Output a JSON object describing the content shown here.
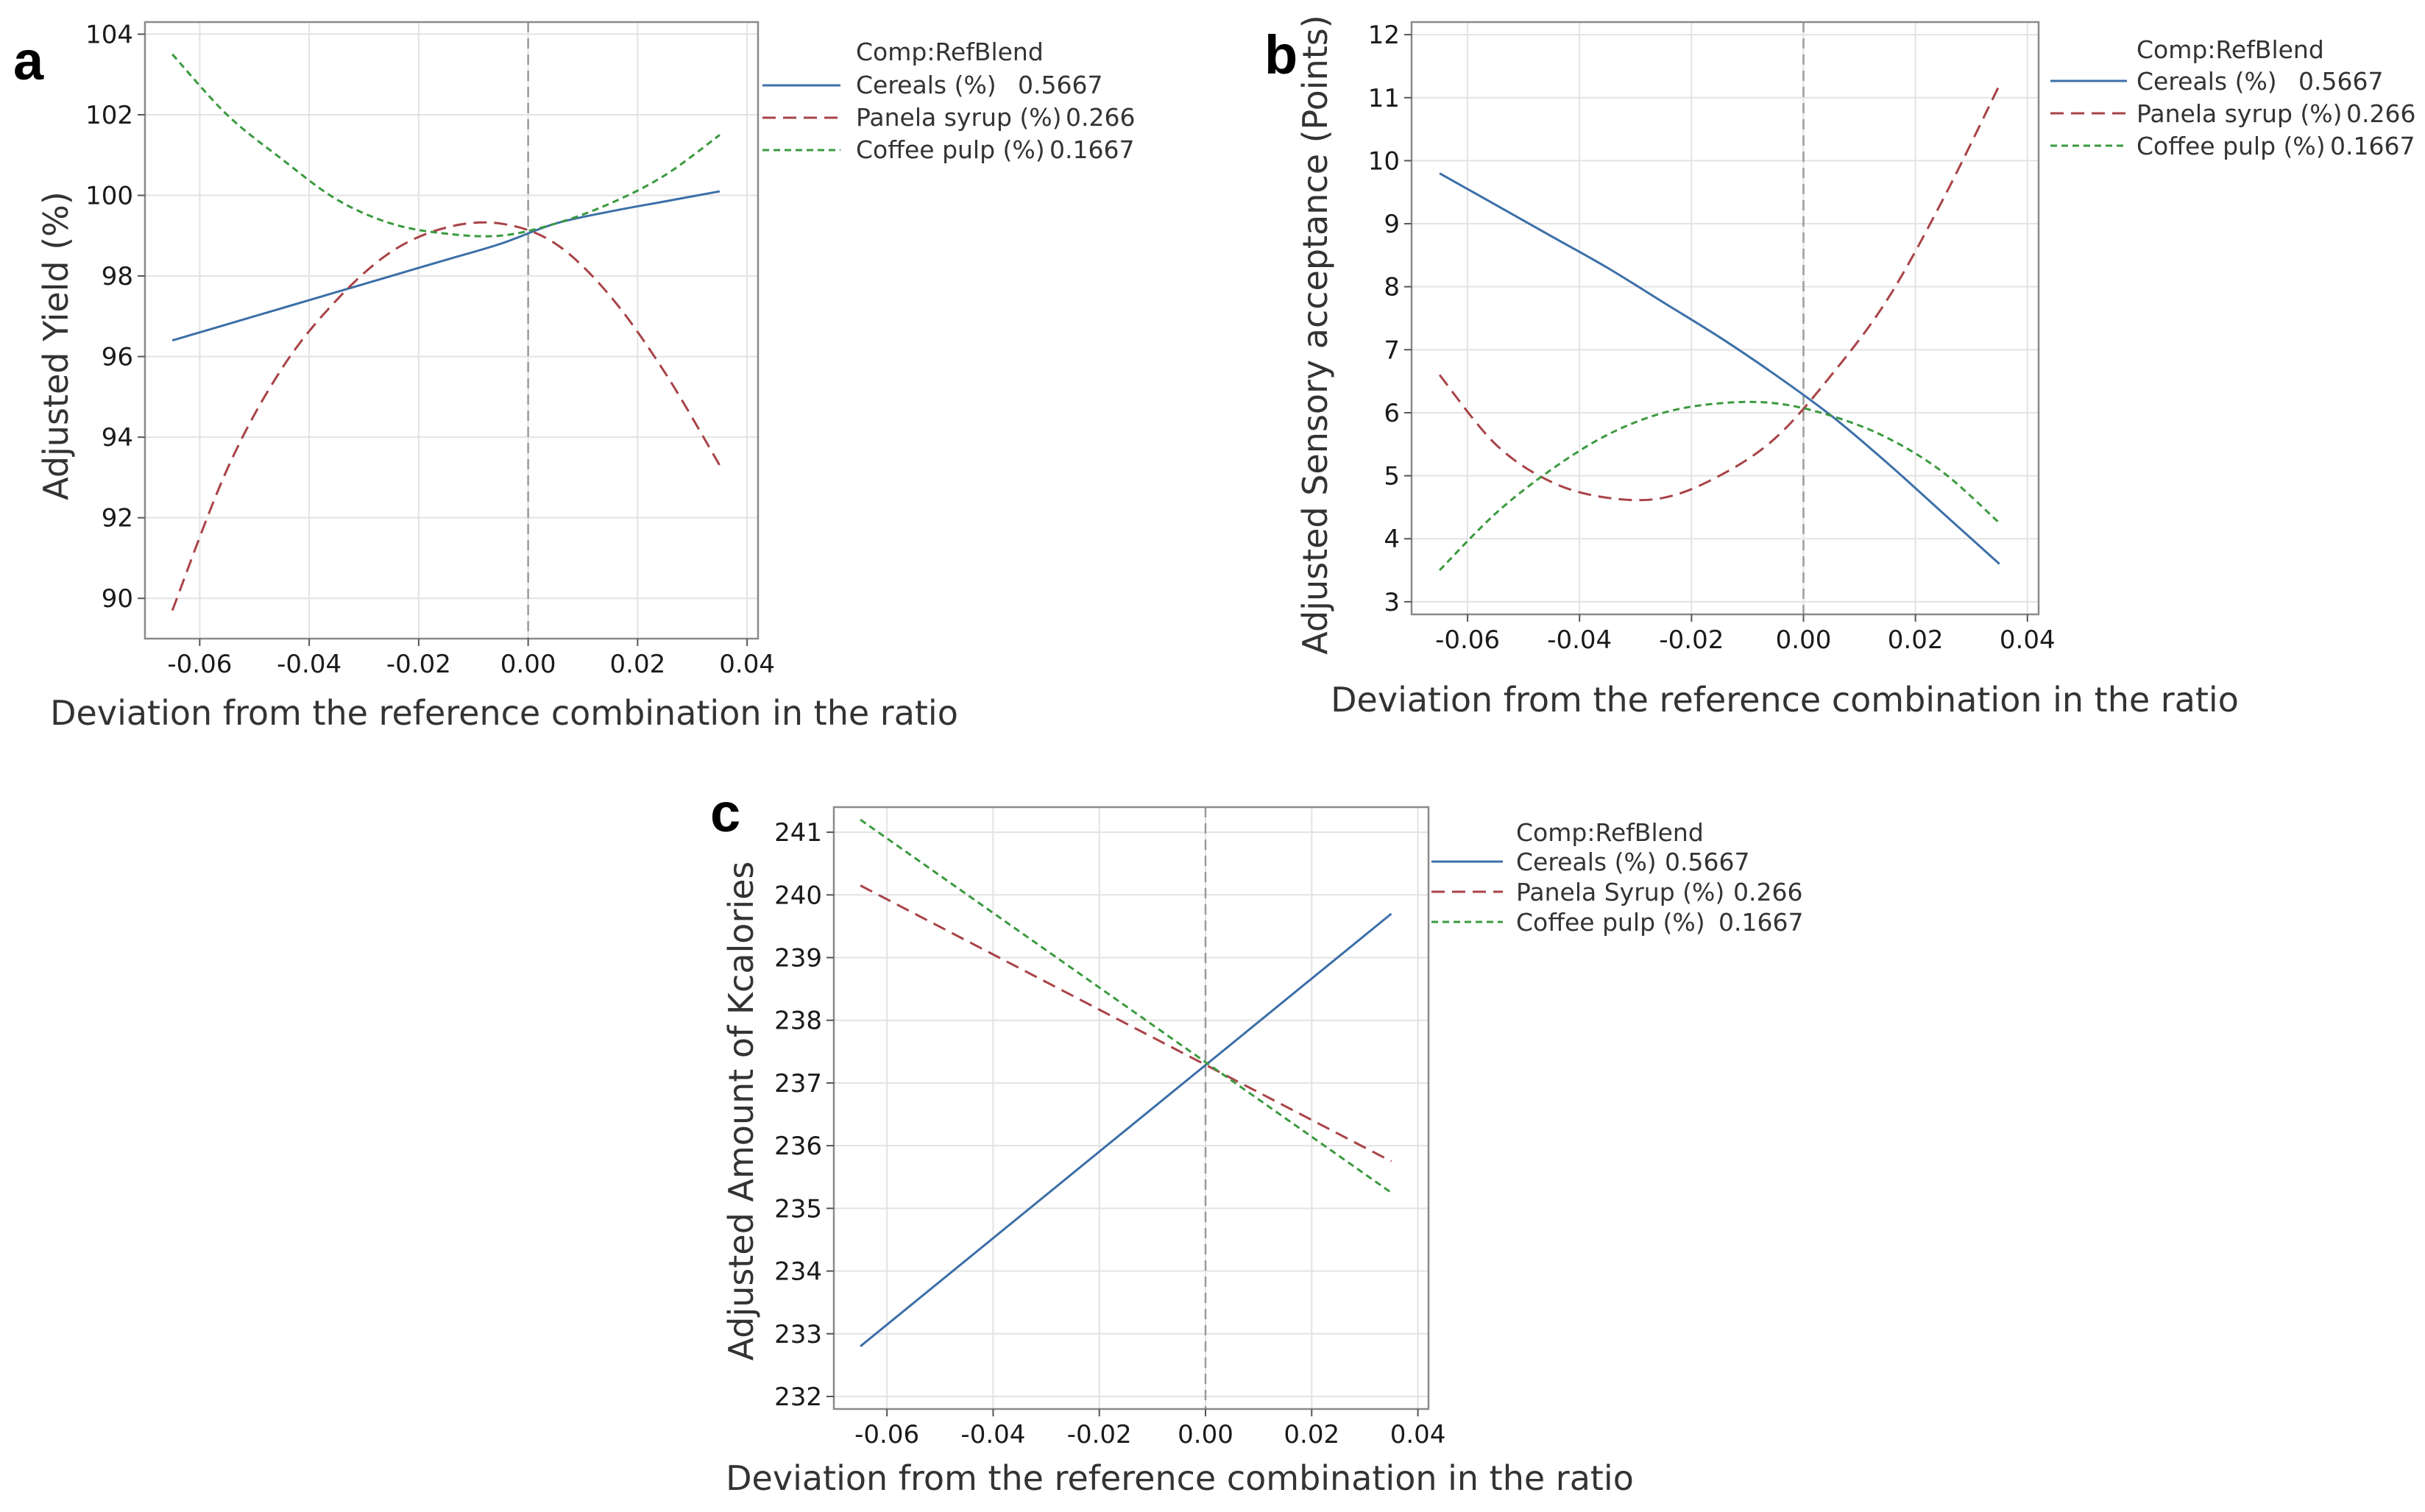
{
  "chart_data": [
    {
      "type": "line",
      "panel": "a",
      "xlabel": "Deviation from the reference combination in the ratio",
      "ylabel": "Adjusted Yield (%)",
      "xlim": [
        -0.07,
        0.042
      ],
      "ylim": [
        89,
        104.3
      ],
      "xticks": [
        -0.06,
        -0.04,
        -0.02,
        0.0,
        0.02,
        0.04
      ],
      "xtick_labels": [
        "-0.06",
        "-0.04",
        "-0.02",
        "0.00",
        "0.02",
        "0.04"
      ],
      "yticks": [
        90,
        92,
        94,
        96,
        98,
        100,
        102,
        104
      ],
      "ytick_labels": [
        "90",
        "92",
        "94",
        "96",
        "98",
        "100",
        "102",
        "104"
      ],
      "reference_x": 0.0,
      "legend_title": "Comp:RefBlend",
      "legend_position": "right",
      "grid": true,
      "x": [
        -0.065,
        -0.055,
        -0.045,
        -0.035,
        -0.025,
        -0.015,
        -0.005,
        0.005,
        0.015,
        0.025,
        0.035
      ],
      "series": [
        {
          "name": "Cereals (%)",
          "ref_value": "0.5667",
          "color": "#3c6fa8",
          "dash": "solid",
          "values": [
            96.4,
            96.8,
            97.2,
            97.6,
            98.0,
            98.4,
            98.8,
            99.3,
            99.6,
            99.85,
            100.1
          ]
        },
        {
          "name": "Panela syrup (%)",
          "ref_value": "0.266",
          "color": "#a94347",
          "dash": "long",
          "values": [
            89.7,
            93.2,
            95.7,
            97.4,
            98.6,
            99.2,
            99.3,
            98.8,
            97.5,
            95.6,
            93.3
          ]
        },
        {
          "name": "Coffee pulp (%)",
          "ref_value": "0.1667",
          "color": "#3a9a3e",
          "dash": "short",
          "values": [
            103.5,
            102.0,
            100.9,
            99.9,
            99.3,
            99.05,
            99.0,
            99.3,
            99.8,
            100.5,
            101.5
          ]
        }
      ]
    },
    {
      "type": "line",
      "panel": "b",
      "xlabel": "Deviation from the reference combination in the ratio",
      "ylabel": "Adjusted Sensory acceptance (Points)",
      "xlim": [
        -0.07,
        0.042
      ],
      "ylim": [
        2.8,
        12.2
      ],
      "xticks": [
        -0.06,
        -0.04,
        -0.02,
        0.0,
        0.02,
        0.04
      ],
      "xtick_labels": [
        "-0.06",
        "-0.04",
        "-0.02",
        "0.00",
        "0.02",
        "0.04"
      ],
      "yticks": [
        3,
        4,
        5,
        6,
        7,
        8,
        9,
        10,
        11,
        12
      ],
      "ytick_labels": [
        "3",
        "4",
        "5",
        "6",
        "7",
        "8",
        "9",
        "10",
        "11",
        "12"
      ],
      "reference_x": 0.0,
      "legend_title": "Comp:RefBlend",
      "legend_position": "right",
      "grid": true,
      "x": [
        -0.065,
        -0.055,
        -0.045,
        -0.035,
        -0.025,
        -0.015,
        -0.005,
        0.005,
        0.015,
        0.025,
        0.035
      ],
      "series": [
        {
          "name": "Cereals (%)",
          "ref_value": "0.5667",
          "color": "#3c6fa8",
          "dash": "solid",
          "values": [
            9.8,
            9.3,
            8.8,
            8.3,
            7.75,
            7.2,
            6.6,
            5.95,
            5.2,
            4.4,
            3.6
          ]
        },
        {
          "name": "Panela syrup (%)",
          "ref_value": "0.266",
          "color": "#a94347",
          "dash": "long",
          "values": [
            6.6,
            5.5,
            4.9,
            4.65,
            4.65,
            5.0,
            5.6,
            6.6,
            7.8,
            9.4,
            11.2
          ]
        },
        {
          "name": "Coffee pulp (%)",
          "ref_value": "0.1667",
          "color": "#3a9a3e",
          "dash": "short",
          "values": [
            3.5,
            4.4,
            5.1,
            5.65,
            6.0,
            6.15,
            6.15,
            5.95,
            5.6,
            5.05,
            4.25
          ]
        }
      ]
    },
    {
      "type": "line",
      "panel": "c",
      "xlabel": "Deviation from the reference combination in the ratio",
      "ylabel": "Adjusted Amount of Kcalories",
      "xlim": [
        -0.07,
        0.042
      ],
      "ylim": [
        231.8,
        241.4
      ],
      "xticks": [
        -0.06,
        -0.04,
        -0.02,
        0.0,
        0.02,
        0.04
      ],
      "xtick_labels": [
        "-0.06",
        "-0.04",
        "-0.02",
        "0.00",
        "0.02",
        "0.04"
      ],
      "yticks": [
        232,
        233,
        234,
        235,
        236,
        237,
        238,
        239,
        240,
        241
      ],
      "ytick_labels": [
        "232",
        "233",
        "234",
        "235",
        "236",
        "237",
        "238",
        "239",
        "240",
        "241"
      ],
      "reference_x": 0.0,
      "legend_title": "Comp:RefBlend",
      "legend_position": "right",
      "grid": true,
      "x": [
        -0.065,
        0.035
      ],
      "series": [
        {
          "name": "Cereals (%)",
          "ref_value": "0.5667",
          "color": "#3c6fa8",
          "dash": "solid",
          "values": [
            232.8,
            239.7
          ]
        },
        {
          "name": "Panela Syrup (%)",
          "ref_value": "0.266",
          "color": "#a94347",
          "dash": "long",
          "values": [
            240.15,
            235.75
          ]
        },
        {
          "name": "Coffee pulp (%)",
          "ref_value": "0.1667",
          "color": "#3a9a3e",
          "dash": "short",
          "values": [
            241.2,
            235.25
          ]
        }
      ]
    }
  ]
}
